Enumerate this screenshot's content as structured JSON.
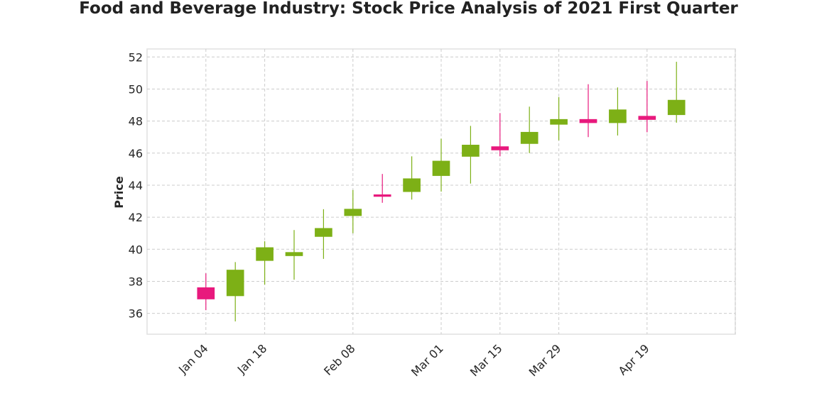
{
  "chart_data": {
    "type": "candlestick",
    "title": "Food and Beverage Industry: Stock Price Analysis of 2021 First Quarter",
    "xlabel": "",
    "ylabel": "Price",
    "ylim": [
      34.7,
      52.5
    ],
    "yticks": [
      36,
      38,
      40,
      42,
      44,
      46,
      48,
      50,
      52
    ],
    "xlim": [
      "2020-12-21",
      "2021-05-10"
    ],
    "xticks": [
      {
        "date": "2021-01-04",
        "label": "Jan 04"
      },
      {
        "date": "2021-01-18",
        "label": "Jan 18"
      },
      {
        "date": "2021-02-08",
        "label": "Feb 08"
      },
      {
        "date": "2021-03-01",
        "label": "Mar 01"
      },
      {
        "date": "2021-03-15",
        "label": "Mar 15"
      },
      {
        "date": "2021-03-29",
        "label": "Mar 29"
      },
      {
        "date": "2021-04-19",
        "label": "Apr 19"
      }
    ],
    "grid": true,
    "up_color": "#7db016",
    "down_color": "#e8197d",
    "candles": [
      {
        "date": "2021-01-04",
        "open": 37.6,
        "high": 38.5,
        "low": 36.2,
        "close": 36.9
      },
      {
        "date": "2021-01-11",
        "open": 37.1,
        "high": 39.2,
        "low": 35.5,
        "close": 38.7
      },
      {
        "date": "2021-01-18",
        "open": 39.3,
        "high": 40.5,
        "low": 37.8,
        "close": 40.1
      },
      {
        "date": "2021-01-25",
        "open": 39.6,
        "high": 41.2,
        "low": 38.1,
        "close": 39.8
      },
      {
        "date": "2021-02-01",
        "open": 40.8,
        "high": 42.5,
        "low": 39.4,
        "close": 41.3
      },
      {
        "date": "2021-02-08",
        "open": 42.1,
        "high": 43.7,
        "low": 41.0,
        "close": 42.5
      },
      {
        "date": "2021-02-15",
        "open": 43.4,
        "high": 44.7,
        "low": 42.9,
        "close": 43.3
      },
      {
        "date": "2021-02-22",
        "open": 43.6,
        "high": 45.8,
        "low": 43.1,
        "close": 44.4
      },
      {
        "date": "2021-03-01",
        "open": 44.6,
        "high": 46.9,
        "low": 43.6,
        "close": 45.5
      },
      {
        "date": "2021-03-08",
        "open": 45.8,
        "high": 47.7,
        "low": 44.1,
        "close": 46.5
      },
      {
        "date": "2021-03-15",
        "open": 46.4,
        "high": 48.5,
        "low": 45.8,
        "close": 46.2
      },
      {
        "date": "2021-03-22",
        "open": 46.6,
        "high": 48.9,
        "low": 46.0,
        "close": 47.3
      },
      {
        "date": "2021-03-29",
        "open": 47.8,
        "high": 49.5,
        "low": 46.8,
        "close": 48.1
      },
      {
        "date": "2021-04-05",
        "open": 48.1,
        "high": 50.3,
        "low": 47.0,
        "close": 47.9
      },
      {
        "date": "2021-04-12",
        "open": 47.9,
        "high": 50.1,
        "low": 47.1,
        "close": 48.7
      },
      {
        "date": "2021-04-19",
        "open": 48.3,
        "high": 50.5,
        "low": 47.3,
        "close": 48.1
      },
      {
        "date": "2021-04-26",
        "open": 48.4,
        "high": 51.7,
        "low": 47.9,
        "close": 49.3
      }
    ]
  }
}
